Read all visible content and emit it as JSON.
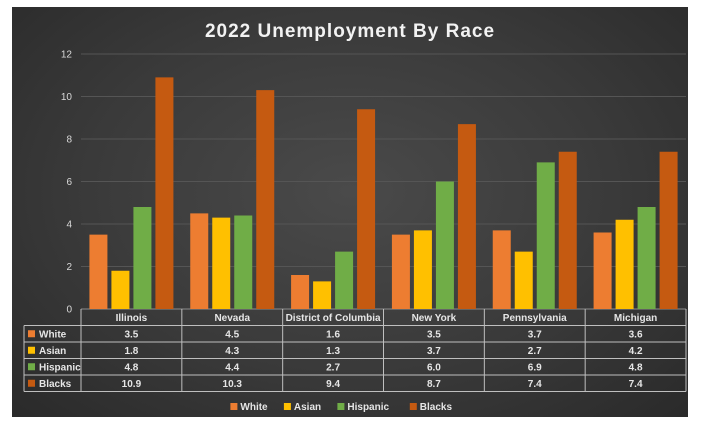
{
  "chart_data": {
    "type": "bar",
    "title": "2022 Unemployment By Race",
    "categories": [
      "Illinois",
      "Nevada",
      "District of Columbia",
      "New York",
      "Pennsylvania",
      "Michigan"
    ],
    "series": [
      {
        "name": "White",
        "values": [
          3.5,
          4.5,
          1.6,
          3.5,
          3.7,
          3.6
        ],
        "color": "#ed7d31"
      },
      {
        "name": "Asian",
        "values": [
          1.8,
          4.3,
          1.3,
          3.7,
          2.7,
          4.2
        ],
        "color": "#ffc000"
      },
      {
        "name": "Hispanic",
        "values": [
          4.8,
          4.4,
          2.7,
          6.0,
          6.9,
          4.8
        ],
        "color": "#70ad47"
      },
      {
        "name": "Blacks",
        "values": [
          10.9,
          10.3,
          9.4,
          8.7,
          7.4,
          7.4
        ],
        "color": "#c55a11"
      }
    ],
    "ylim": [
      0,
      12
    ],
    "yticks": [
      0,
      2,
      4,
      6,
      8,
      10,
      12
    ],
    "grid": true,
    "data_table": true,
    "legend_position": "bottom"
  }
}
